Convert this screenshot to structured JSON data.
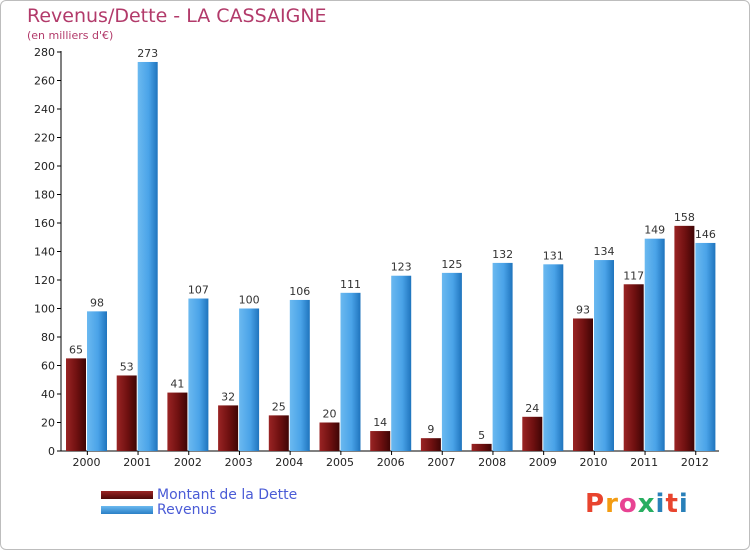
{
  "title": "Revenus/Dette - LA CASSAIGNE",
  "subtitle": "(en milliers d'€)",
  "logo": {
    "text": "Proxiti",
    "colors": [
      "#e8442e",
      "#f39c12",
      "#e84393",
      "#27ae60",
      "#2980b9",
      "#e8442e",
      "#2980b9"
    ]
  },
  "chart_data": {
    "type": "bar",
    "title": "Revenus/Dette - LA CASSAIGNE",
    "subtitle": "(en milliers d'€)",
    "xlabel": "",
    "ylabel": "",
    "categories": [
      "2000",
      "2001",
      "2002",
      "2003",
      "2004",
      "2005",
      "2006",
      "2007",
      "2008",
      "2009",
      "2010",
      "2011",
      "2012"
    ],
    "series": [
      {
        "name": "Montant de la Dette",
        "color": "#7a1414",
        "values": [
          65,
          53,
          41,
          32,
          25,
          20,
          14,
          9,
          5,
          24,
          93,
          117,
          158
        ]
      },
      {
        "name": "Revenus",
        "color": "#4aa3e8",
        "values": [
          98,
          273,
          107,
          100,
          106,
          111,
          123,
          125,
          132,
          131,
          134,
          149,
          146
        ]
      }
    ],
    "ylim": [
      0,
      280
    ],
    "yticks": [
      "0",
      "20",
      "40",
      "60",
      "80",
      "100",
      "120",
      "140",
      "160",
      "180",
      "200",
      "220",
      "240",
      "260",
      "280"
    ],
    "grid": false,
    "legend": "bottom-left"
  }
}
